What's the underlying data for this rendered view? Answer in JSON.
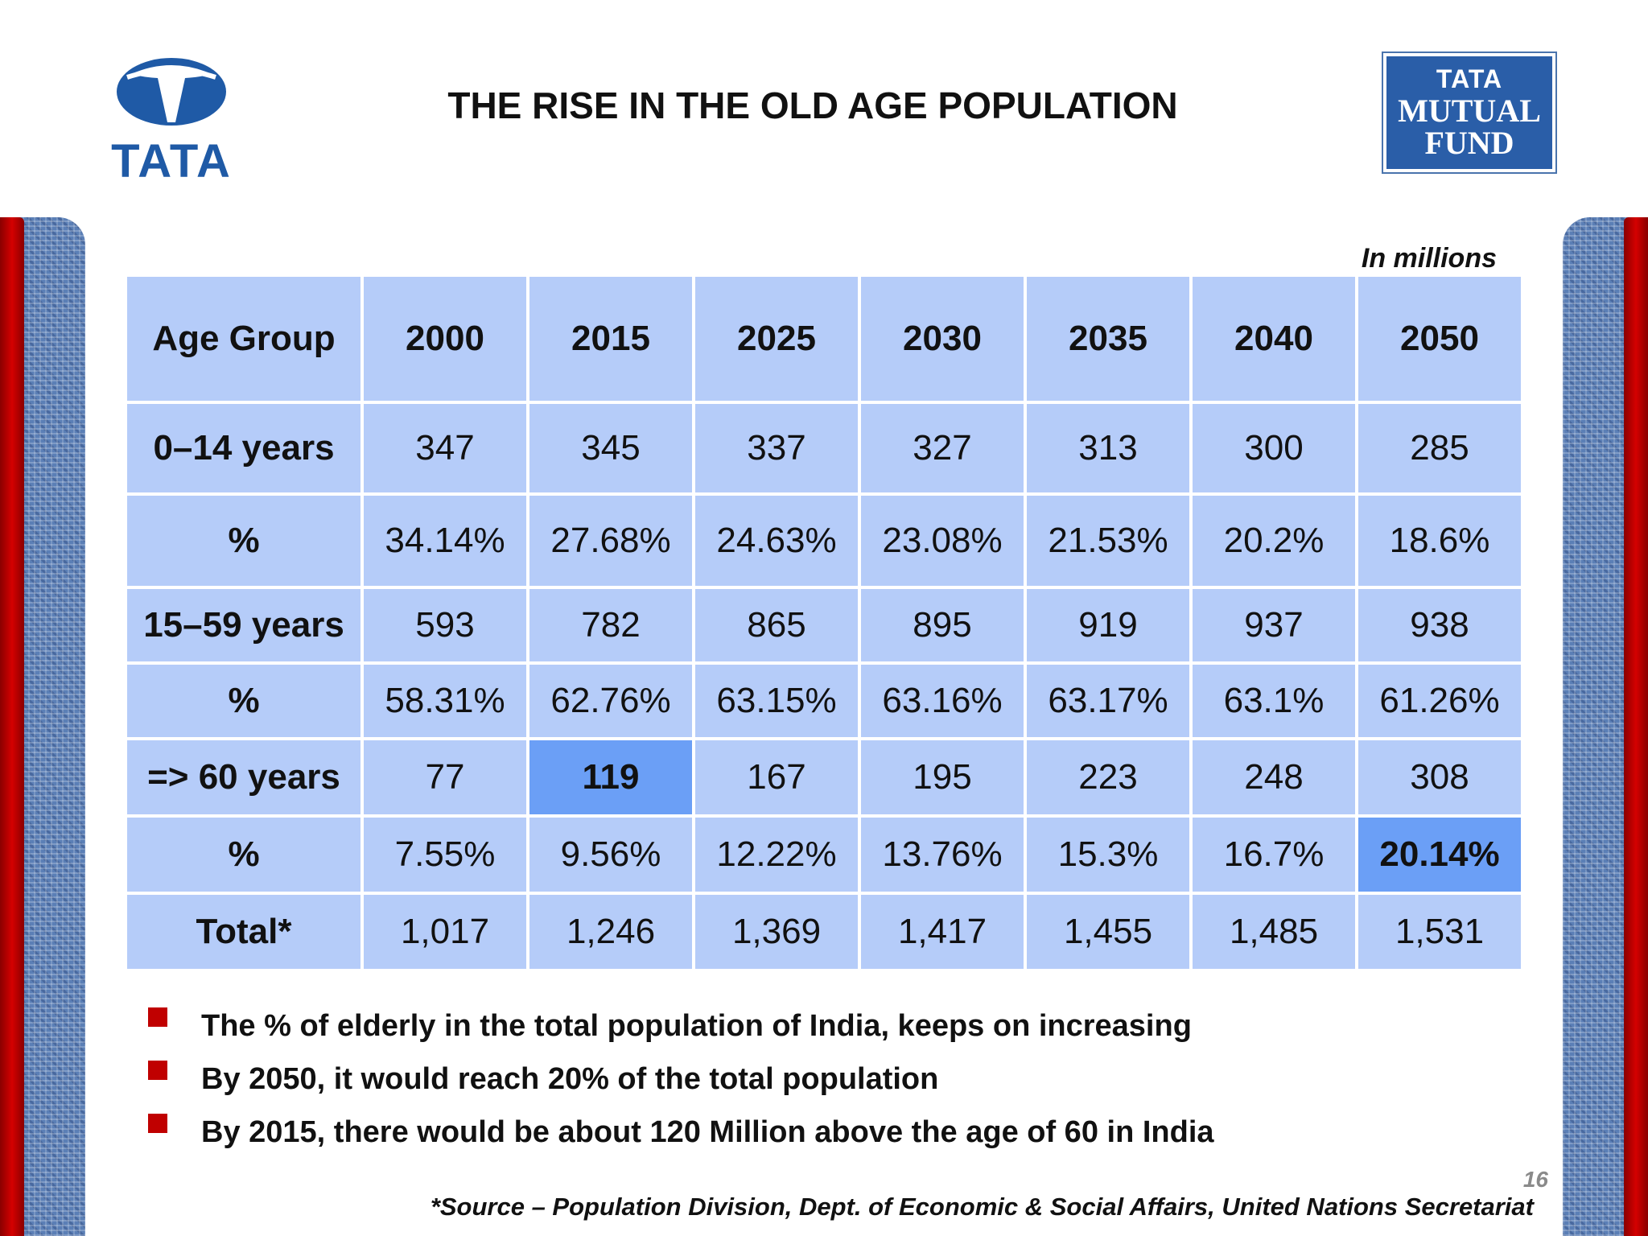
{
  "header": {
    "left_logo_text": "TATA",
    "title": "THE RISE IN THE OLD AGE POPULATION",
    "right_logo": {
      "line1": "TATA",
      "line2": "MUTUAL",
      "line3": "FUND"
    }
  },
  "colors": {
    "brand_blue": "#1f5aa6",
    "cell_blue": "#b5ccf9",
    "highlight_blue": "#6b9ff6",
    "accent_red": "#c00000"
  },
  "unit_note": "In millions",
  "table": {
    "headers": [
      "Age Group",
      "2000",
      "2015",
      "2025",
      "2030",
      "2035",
      "2040",
      "2050"
    ],
    "rows": [
      {
        "label": "0–14 years",
        "values": [
          "347",
          "345",
          "337",
          "327",
          "313",
          "300",
          "285"
        ]
      },
      {
        "label": "%",
        "values": [
          "34.14%",
          "27.68%",
          "24.63%",
          "23.08%",
          "21.53%",
          "20.2%",
          "18.6%"
        ]
      },
      {
        "label": "15–59 years",
        "values": [
          "593",
          "782",
          "865",
          "895",
          "919",
          "937",
          "938"
        ]
      },
      {
        "label": "%",
        "values": [
          "58.31%",
          "62.76%",
          "63.15%",
          "63.16%",
          "63.17%",
          "63.1%",
          "61.26%"
        ]
      },
      {
        "label": "=> 60 years",
        "values": [
          "77",
          "119",
          "167",
          "195",
          "223",
          "248",
          "308"
        ]
      },
      {
        "label": "%",
        "values": [
          "7.55%",
          "9.56%",
          "12.22%",
          "13.76%",
          "15.3%",
          "16.7%",
          "20.14%"
        ]
      },
      {
        "label": "Total*",
        "values": [
          "1,017",
          "1,246",
          "1,369",
          "1,417",
          "1,455",
          "1,485",
          "1,531"
        ]
      }
    ]
  },
  "bullets": [
    "The % of elderly in the total population of India, keeps on increasing",
    "By 2050, it would reach 20% of the total population",
    "By 2015, there would be about 120 Million above the age of 60 in India"
  ],
  "page_number": "16",
  "source": "*Source – Population Division, Dept. of Economic & Social Affairs, United Nations Secretariat"
}
